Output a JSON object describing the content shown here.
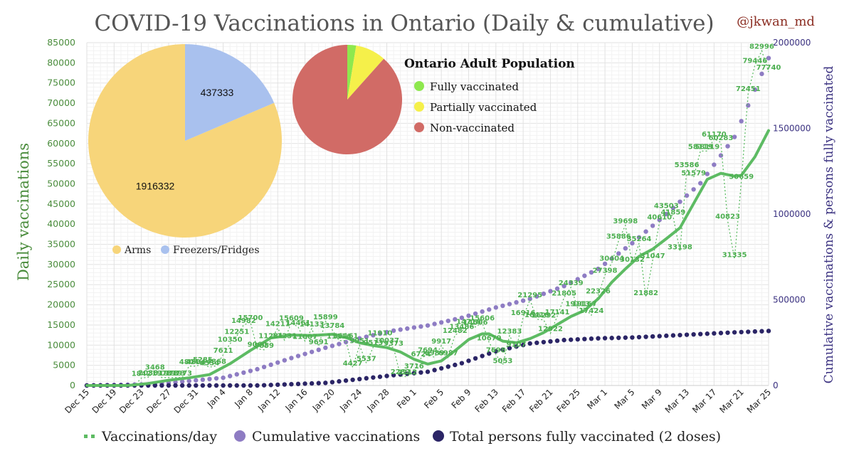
{
  "header": {
    "title": "COVID-19 Vaccinations in Ontario (Daily & cumulative)",
    "handle": "@jkwan_md"
  },
  "colors": {
    "daily": "#5dbb63",
    "cumulative": "#8e7cc3",
    "fully": "#2b2566",
    "arms": "#f7d57a",
    "freezers": "#a9c1ee",
    "fully_vacc": "#8ee84e",
    "partial_vacc": "#f5f04a",
    "non_vacc": "#d16b66"
  },
  "chart_data": [
    {
      "type": "line",
      "title": "COVID-19 Vaccinations in Ontario (Daily & cumulative)",
      "ylabel": "Daily vaccinations",
      "y2label": "Cumulative vaccinations & persons fully vaccinated",
      "ylim": [
        0,
        85000
      ],
      "y2lim": [
        0,
        2000000
      ],
      "yticks": [
        0,
        5000,
        10000,
        15000,
        20000,
        25000,
        30000,
        35000,
        40000,
        45000,
        50000,
        55000,
        60000,
        65000,
        70000,
        75000,
        80000,
        85000
      ],
      "y2ticks": [
        0,
        500000,
        1000000,
        1500000,
        2000000
      ],
      "xticks": [
        "Dec 15",
        "Dec 19",
        "Dec 23",
        "Dec 27",
        "Dec 31",
        "Jan 4",
        "Jan 8",
        "Jan 12",
        "Jan 16",
        "Jan 20",
        "Jan 24",
        "Jan 28",
        "Feb 1",
        "Feb 5",
        "Feb 9",
        "Feb 13",
        "Feb 17",
        "Feb 21",
        "Feb 25",
        "Mar 1",
        "Mar 5",
        "Mar 9",
        "Mar 13",
        "Mar 17",
        "Mar 21",
        "Mar 25"
      ],
      "grid": true,
      "legend_position": "bottom",
      "legend": [
        "Vaccinations/day",
        "Cumulative vaccinations",
        "Total persons fully vaccinated (2 doses)"
      ],
      "series": [
        {
          "name": "Vaccinations/day",
          "axis": "left",
          "style": "dotted",
          "points": [
            [
              0,
              0
            ],
            [
              1,
              0
            ],
            [
              2,
              0
            ],
            [
              3,
              0
            ],
            [
              4,
              0
            ],
            [
              5,
              0
            ],
            [
              6,
              0
            ],
            [
              7,
              0
            ],
            [
              8,
              1842
            ],
            [
              9,
              2038
            ],
            [
              10,
              3468
            ],
            [
              11,
              1973
            ],
            [
              12,
              1973
            ],
            [
              13,
              1973
            ],
            [
              14,
              1973
            ],
            [
              15,
              4804
            ],
            [
              16,
              4804
            ],
            [
              17,
              5285
            ],
            [
              18,
              4534
            ],
            [
              19,
              4868
            ],
            [
              20,
              7611
            ],
            [
              21,
              10350
            ],
            [
              22,
              12251
            ],
            [
              23,
              14982
            ],
            [
              24,
              15700
            ],
            [
              25,
              9060
            ],
            [
              26,
              8859
            ],
            [
              27,
              11231
            ],
            [
              28,
              14211
            ],
            [
              29,
              11231
            ],
            [
              30,
              15609
            ],
            [
              31,
              14461
            ],
            [
              32,
              11007
            ],
            [
              33,
              14133
            ],
            [
              34,
              9691
            ],
            [
              35,
              15899
            ],
            [
              36,
              13784
            ],
            [
              37,
              11116
            ],
            [
              38,
              11161
            ],
            [
              39,
              4427
            ],
            [
              40,
              9951
            ],
            [
              41,
              5537
            ],
            [
              42,
              9513
            ],
            [
              43,
              11910
            ],
            [
              44,
              10037
            ],
            [
              45,
              9373
            ],
            [
              46,
              2282
            ],
            [
              47,
              2212
            ],
            [
              48,
              3716
            ],
            [
              49,
              6724
            ],
            [
              50,
              7694
            ],
            [
              51,
              6989
            ],
            [
              52,
              9917
            ],
            [
              53,
              6987
            ],
            [
              54,
              12482
            ],
            [
              55,
              13486
            ],
            [
              56,
              14716
            ],
            [
              57,
              14506
            ],
            [
              58,
              15606
            ],
            [
              59,
              10679
            ],
            [
              60,
              7698
            ],
            [
              61,
              5053
            ],
            [
              62,
              12383
            ],
            [
              63,
              9107
            ],
            [
              64,
              16916
            ],
            [
              65,
              21295
            ],
            [
              66,
              16416
            ],
            [
              67,
              16292
            ],
            [
              68,
              12922
            ],
            [
              69,
              17141
            ],
            [
              70,
              21805
            ],
            [
              71,
              24339
            ],
            [
              72,
              19113
            ],
            [
              73,
              19167
            ],
            [
              74,
              17424
            ],
            [
              75,
              22326
            ],
            [
              76,
              27398
            ],
            [
              77,
              30404
            ],
            [
              78,
              35886
            ],
            [
              79,
              39698
            ],
            [
              80,
              30132
            ],
            [
              81,
              35264
            ],
            [
              82,
              21882
            ],
            [
              83,
              31047
            ],
            [
              84,
              40610
            ],
            [
              85,
              43503
            ],
            [
              86,
              41859
            ],
            [
              87,
              33198
            ],
            [
              88,
              53586
            ],
            [
              89,
              51579
            ],
            [
              90,
              58119
            ],
            [
              91,
              58119
            ],
            [
              92,
              61170
            ],
            [
              93,
              60283
            ],
            [
              94,
              40823
            ],
            [
              95,
              31335
            ],
            [
              96,
              50659
            ],
            [
              97,
              72451
            ],
            [
              98,
              79446
            ],
            [
              99,
              82996
            ],
            [
              100,
              77740
            ]
          ]
        },
        {
          "name": "Vaccinations/day (7-day average)",
          "axis": "left",
          "style": "line",
          "points": [
            [
              0,
              0
            ],
            [
              3,
              0
            ],
            [
              6,
              0
            ],
            [
              9,
              500
            ],
            [
              12,
              1300
            ],
            [
              15,
              1900
            ],
            [
              18,
              2700
            ],
            [
              21,
              5400
            ],
            [
              24,
              8700
            ],
            [
              27,
              11800
            ],
            [
              30,
              12500
            ],
            [
              33,
              12400
            ],
            [
              36,
              12700
            ],
            [
              38,
              11900
            ],
            [
              40,
              10600
            ],
            [
              42,
              9900
            ],
            [
              44,
              9400
            ],
            [
              46,
              8300
            ],
            [
              48,
              6500
            ],
            [
              50,
              5300
            ],
            [
              52,
              6100
            ],
            [
              54,
              8600
            ],
            [
              56,
              11400
            ],
            [
              58,
              12800
            ],
            [
              59,
              12800
            ],
            [
              61,
              11000
            ],
            [
              63,
              10600
            ],
            [
              65,
              11600
            ],
            [
              67,
              13100
            ],
            [
              69,
              15100
            ],
            [
              71,
              17100
            ],
            [
              73,
              18600
            ],
            [
              75,
              21500
            ],
            [
              77,
              25600
            ],
            [
              79,
              28900
            ],
            [
              81,
              32000
            ],
            [
              83,
              33800
            ],
            [
              85,
              36400
            ],
            [
              87,
              39100
            ],
            [
              89,
              45100
            ],
            [
              91,
              51100
            ],
            [
              93,
              52600
            ],
            [
              95,
              51900
            ],
            [
              96,
              52100
            ],
            [
              98,
              56700
            ],
            [
              100,
              63200
            ]
          ]
        },
        {
          "name": "Cumulative vaccinations",
          "axis": "right",
          "style": "dots",
          "points": [
            [
              0,
              0
            ],
            [
              10,
              8000
            ],
            [
              20,
              45000
            ],
            [
              25,
              95000
            ],
            [
              30,
              160000
            ],
            [
              35,
              220000
            ],
            [
              40,
              275000
            ],
            [
              45,
              320000
            ],
            [
              50,
              350000
            ],
            [
              55,
              395000
            ],
            [
              60,
              455000
            ],
            [
              65,
              505000
            ],
            [
              70,
              580000
            ],
            [
              75,
              680000
            ],
            [
              80,
              830000
            ],
            [
              85,
              1000000
            ],
            [
              90,
              1180000
            ],
            [
              95,
              1450000
            ],
            [
              100,
              1910000
            ]
          ]
        },
        {
          "name": "Total persons fully vaccinated (2 doses)",
          "axis": "right",
          "style": "dots",
          "points": [
            [
              0,
              0
            ],
            [
              25,
              0
            ],
            [
              35,
              15000
            ],
            [
              45,
              60000
            ],
            [
              50,
              80000
            ],
            [
              55,
              130000
            ],
            [
              60,
              200000
            ],
            [
              65,
              245000
            ],
            [
              70,
              265000
            ],
            [
              75,
              275000
            ],
            [
              80,
              280000
            ],
            [
              85,
              290000
            ],
            [
              90,
              300000
            ],
            [
              95,
              310000
            ],
            [
              100,
              318000
            ]
          ]
        }
      ]
    },
    {
      "type": "pie",
      "labels": [
        "Arms",
        "Freezers/Fridges"
      ],
      "values": [
        1916332,
        437333
      ],
      "legend_position": "bottom"
    },
    {
      "type": "pie",
      "title": "Ontario Adult Population",
      "labels": [
        "Fully vaccinated",
        "Partially vaccinated",
        "Non-vaccinated"
      ],
      "values": [
        2.6,
        9.0,
        88.4
      ],
      "legend_position": "right"
    }
  ]
}
